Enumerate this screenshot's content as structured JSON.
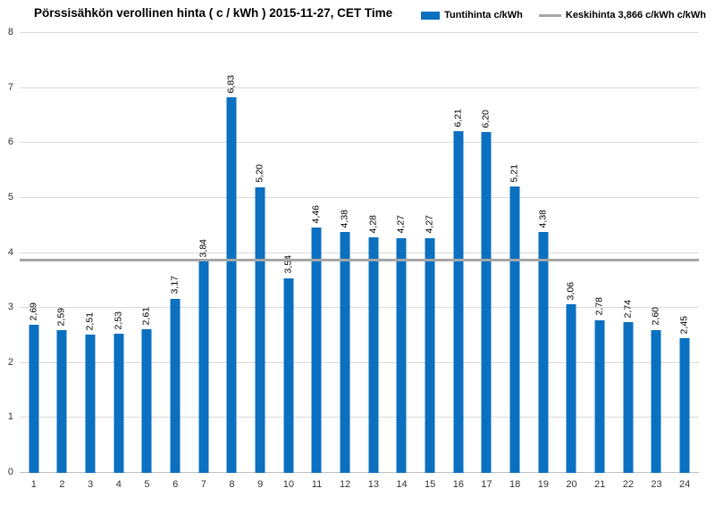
{
  "title": "Pörssisähkön verollinen hinta ( c / kWh ) 2015-11-27, CET Time",
  "legend": {
    "series_label": "Tuntihinta c/kWh",
    "average_label": "Keskihinta 3,866 c/kWh c/kWh"
  },
  "colors": {
    "bar": "#0B70C0",
    "average_line": "#A6A6A6",
    "gridline": "#D9D9D9",
    "baseline": "#BFBFBF",
    "axis_text": "#333333"
  },
  "chart_data": {
    "type": "bar",
    "title": "Pörssisähkön verollinen hinta ( c / kWh ) 2015-11-27, CET Time",
    "categories": [
      "1",
      "2",
      "3",
      "4",
      "5",
      "6",
      "7",
      "8",
      "9",
      "10",
      "11",
      "12",
      "13",
      "14",
      "15",
      "16",
      "17",
      "18",
      "19",
      "20",
      "21",
      "22",
      "23",
      "24"
    ],
    "values": [
      2.69,
      2.59,
      2.51,
      2.53,
      2.61,
      3.17,
      3.84,
      6.83,
      5.2,
      3.54,
      4.46,
      4.38,
      4.28,
      4.27,
      4.27,
      6.21,
      6.2,
      5.21,
      4.38,
      3.06,
      2.78,
      2.74,
      2.6,
      2.45
    ],
    "value_labels": [
      "2,69",
      "2,59",
      "2,51",
      "2,53",
      "2,61",
      "3,17",
      "3,84",
      "6,83",
      "5,20",
      "3,54",
      "4,46",
      "4,38",
      "4,28",
      "4,27",
      "4,27",
      "6,21",
      "6,20",
      "5,21",
      "4,38",
      "3,06",
      "2,78",
      "2,74",
      "2,60",
      "2,45"
    ],
    "series_name": "Tuntihinta c/kWh",
    "average": 3.866,
    "average_label": "Keskihinta 3,866 c/kWh c/kWh",
    "xlabel": "",
    "ylabel": "",
    "ylim": [
      0,
      8
    ],
    "ytick_step": 1,
    "yticks": [
      0,
      1,
      2,
      3,
      4,
      5,
      6,
      7,
      8
    ],
    "grid": true,
    "legend_position": "top-right"
  }
}
